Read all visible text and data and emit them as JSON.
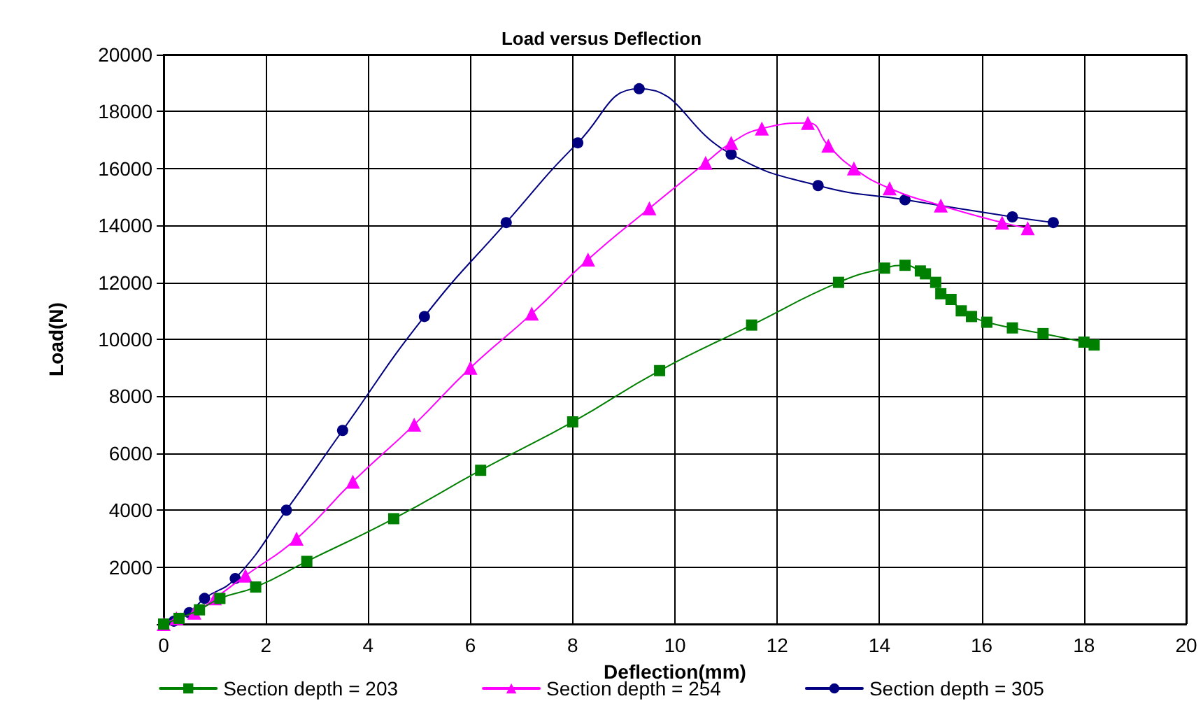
{
  "chart_data": {
    "type": "line",
    "title": "Load versus Deflection",
    "xlabel": "Deflection(mm)",
    "ylabel": "Load(N)",
    "xlim": [
      0,
      20
    ],
    "xticks": [
      0,
      2,
      4,
      6,
      8,
      10,
      12,
      14,
      16,
      18,
      20
    ],
    "ylim": [
      0,
      20000
    ],
    "yticks": [
      {
        "value": 0,
        "label": null
      },
      2000,
      4000,
      6000,
      8000,
      10000,
      12000,
      14000,
      16000,
      18000,
      20000
    ],
    "grid": true,
    "legend": "bottom",
    "line_style": "solid",
    "series": [
      {
        "name": "Section depth = 203",
        "color": "#008000",
        "marker": "square",
        "x": [
          0,
          0.3,
          0.7,
          1.1,
          1.8,
          2.8,
          4.5,
          6.2,
          8.0,
          9.7,
          11.5,
          13.2,
          14.1,
          14.5,
          14.8,
          14.9,
          15.1,
          15.2,
          15.4,
          15.6,
          15.8,
          16.1,
          16.6,
          17.2,
          18.0,
          18.2
        ],
        "values": [
          0,
          200,
          500,
          900,
          1300,
          2200,
          3700,
          5400,
          7100,
          8900,
          10500,
          12000,
          12500,
          12600,
          12400,
          12300,
          12000,
          11600,
          11400,
          11000,
          10800,
          10600,
          10400,
          10200,
          9900,
          9800
        ]
      },
      {
        "name": "Section depth = 254",
        "color": "#ff00ff",
        "marker": "triangle",
        "x": [
          0,
          0.25,
          0.6,
          1.0,
          1.6,
          2.6,
          3.7,
          4.9,
          6.0,
          7.2,
          8.3,
          9.5,
          10.6,
          11.1,
          11.7,
          12.6,
          13.0,
          13.5,
          14.2,
          15.2,
          16.4,
          16.9
        ],
        "values": [
          0,
          200,
          400,
          900,
          1700,
          3000,
          5000,
          7000,
          9000,
          10900,
          12800,
          14600,
          16200,
          16900,
          17400,
          17600,
          16800,
          16000,
          15300,
          14700,
          14100,
          13900
        ]
      },
      {
        "name": "Section depth = 305",
        "color": "#000080",
        "marker": "circle",
        "x": [
          0,
          0.2,
          0.5,
          0.8,
          1.4,
          2.4,
          3.5,
          5.1,
          6.7,
          8.1,
          9.3,
          11.1,
          12.8,
          14.5,
          16.6,
          17.4
        ],
        "values": [
          0,
          100,
          400,
          900,
          1600,
          4000,
          6800,
          10800,
          14100,
          16900,
          18800,
          16500,
          15400,
          14900,
          14300,
          14100
        ]
      }
    ]
  }
}
